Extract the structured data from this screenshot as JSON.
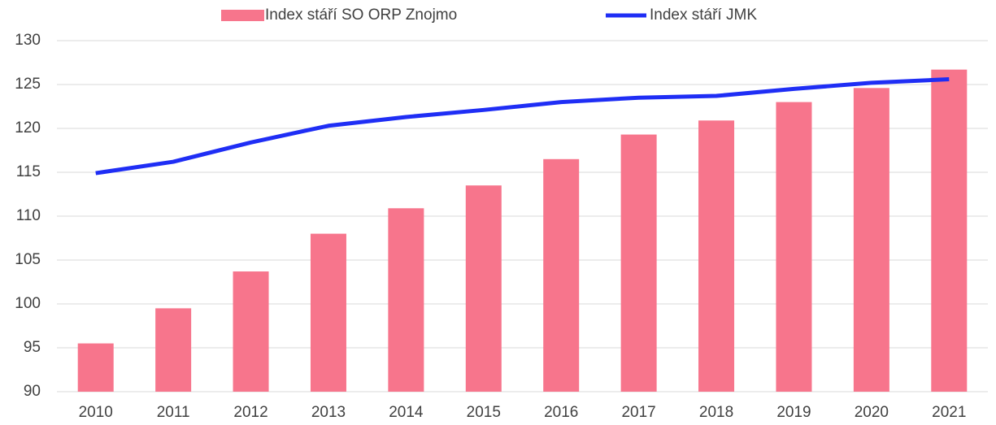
{
  "chart_data": {
    "type": "bar",
    "categories": [
      "2010",
      "2011",
      "2012",
      "2013",
      "2014",
      "2015",
      "2016",
      "2017",
      "2018",
      "2019",
      "2020",
      "2021"
    ],
    "series": [
      {
        "name": "Index stáří SO ORP Znojmo",
        "type": "bar",
        "color": "#f7758c",
        "values": [
          95.5,
          99.5,
          103.7,
          108.0,
          110.9,
          113.5,
          116.5,
          119.3,
          120.9,
          123.0,
          124.6,
          126.7
        ]
      },
      {
        "name": "Index stáří JMK",
        "type": "line",
        "color": "#1f2ef5",
        "values": [
          114.9,
          116.2,
          118.4,
          120.3,
          121.3,
          122.1,
          123.0,
          123.5,
          123.7,
          124.5,
          125.2,
          125.6
        ]
      }
    ],
    "ylim": [
      90,
      130
    ],
    "yticks": [
      90,
      95,
      100,
      105,
      110,
      115,
      120,
      125,
      130
    ],
    "grid": true,
    "legend": "top"
  }
}
